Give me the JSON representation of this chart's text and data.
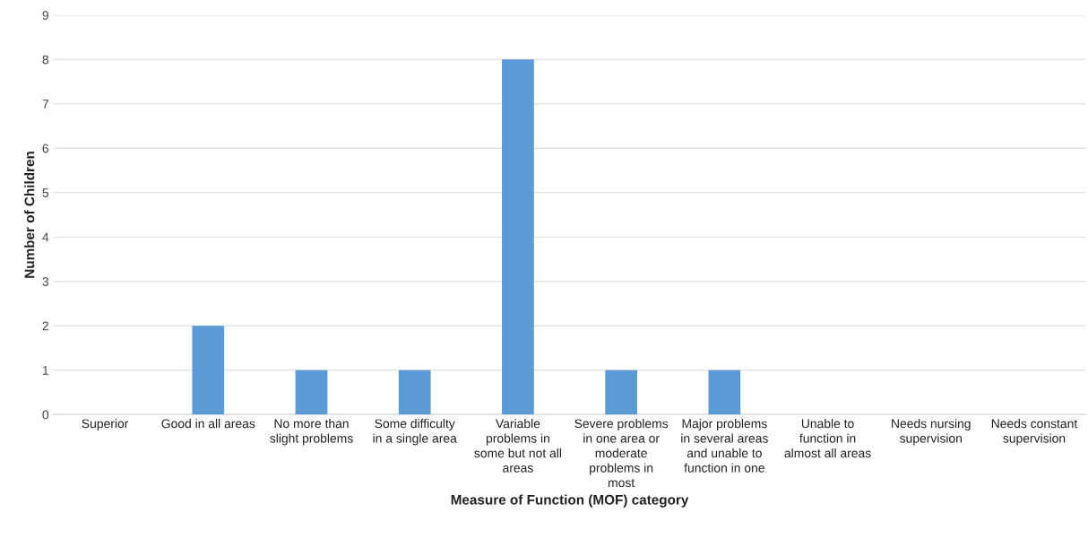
{
  "chart_data": {
    "type": "bar",
    "xlabel": "Measure of Function (MOF) category",
    "ylabel": "Number of Children",
    "categories": [
      "Superior",
      "Good in all areas",
      "No more than\nslight problems",
      "Some difficulty\nin a single area",
      "Variable\nproblems in\nsome but not all\nareas",
      "Severe problems\nin one area or\nmoderate\nproblems in\nmost",
      "Major problems\nin several areas\nand unable to\nfunction in one",
      "Unable to\nfunction in\nalmost all areas",
      "Needs nursing\nsupervision",
      "Needs constant\nsupervision"
    ],
    "values": [
      0,
      2,
      1,
      1,
      8,
      1,
      1,
      0,
      0,
      0
    ],
    "color": "#5b9bd5",
    "ylim": [
      0,
      9
    ],
    "yticks": [
      0,
      1,
      2,
      3,
      4,
      5,
      6,
      7,
      8,
      9
    ],
    "grid": "y"
  }
}
